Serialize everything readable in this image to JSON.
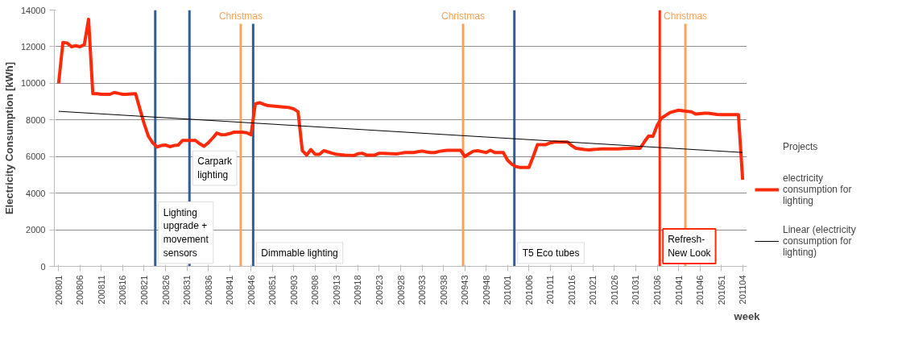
{
  "chart_data": {
    "type": "line",
    "xlabel": "week",
    "ylabel": "Electricity Consumption [kWh]",
    "legend_title": "Projects",
    "categories": [
      "200801",
      null,
      null,
      null,
      null,
      "200806",
      null,
      null,
      null,
      null,
      "200811",
      null,
      null,
      null,
      null,
      "200816",
      null,
      null,
      null,
      null,
      "200821",
      null,
      null,
      null,
      null,
      "200826",
      null,
      null,
      null,
      null,
      "200831",
      null,
      null,
      null,
      null,
      "200836",
      null,
      null,
      null,
      null,
      "200841",
      null,
      null,
      null,
      null,
      "200846",
      null,
      null,
      null,
      null,
      "200851",
      null,
      null,
      null,
      null,
      "200903",
      null,
      null,
      null,
      null,
      "200908",
      null,
      null,
      null,
      null,
      "200913",
      null,
      null,
      null,
      null,
      "200918",
      null,
      null,
      null,
      null,
      "200923",
      null,
      null,
      null,
      null,
      "200928",
      null,
      null,
      null,
      null,
      "200933",
      null,
      null,
      null,
      null,
      "200938",
      null,
      null,
      null,
      null,
      "200943",
      null,
      null,
      null,
      null,
      "200948",
      null,
      null,
      null,
      null,
      "201001",
      null,
      null,
      null,
      null,
      "201006",
      null,
      null,
      null,
      null,
      "201011",
      null,
      null,
      null,
      null,
      "201016",
      null,
      null,
      null,
      null,
      "201021",
      null,
      null,
      null,
      null,
      "201026",
      null,
      null,
      null,
      null,
      "201031",
      null,
      null,
      null,
      null,
      "201036",
      null,
      null,
      null,
      null,
      "201041",
      null,
      null,
      null,
      null,
      "201046",
      null,
      null,
      null,
      null,
      "201051",
      null,
      null,
      null,
      null,
      "201104"
    ],
    "ylim": [
      0,
      14000
    ],
    "yticks": [
      0,
      2000,
      4000,
      6000,
      8000,
      10000,
      12000,
      14000
    ],
    "grid": "y",
    "legend": "right",
    "marker": "none",
    "series": [
      {
        "name": "electricity consumption for lighting",
        "color": "#ff2a0a",
        "values": [
          10000,
          12230,
          12200,
          12000,
          12050,
          12000,
          12100,
          13500,
          9430,
          9430,
          9400,
          9400,
          9400,
          9500,
          9450,
          9400,
          9400,
          9420,
          9430,
          8600,
          7800,
          7100,
          6750,
          6520,
          6600,
          6630,
          6540,
          6600,
          6630,
          6880,
          6880,
          6880,
          6880,
          6700,
          6560,
          6750,
          7000,
          7280,
          7190,
          7200,
          7250,
          7330,
          7330,
          7330,
          7300,
          7190,
          8870,
          8940,
          8850,
          8780,
          8760,
          8740,
          8720,
          8700,
          8670,
          8600,
          8450,
          6320,
          6080,
          6380,
          6120,
          6120,
          6320,
          6250,
          6180,
          6120,
          6100,
          6080,
          6070,
          6050,
          6150,
          6180,
          6080,
          6080,
          6080,
          6180,
          6170,
          6160,
          6150,
          6140,
          6180,
          6220,
          6220,
          6220,
          6260,
          6300,
          6250,
          6220,
          6220,
          6280,
          6320,
          6340,
          6340,
          6340,
          6340,
          6000,
          6150,
          6290,
          6320,
          6270,
          6220,
          6340,
          6220,
          6220,
          6220,
          5800,
          5580,
          5450,
          5400,
          5400,
          5400,
          6000,
          6650,
          6650,
          6650,
          6750,
          6790,
          6790,
          6790,
          6790,
          6600,
          6450,
          6420,
          6380,
          6360,
          6380,
          6400,
          6420,
          6420,
          6420,
          6420,
          6420,
          6440,
          6440,
          6450,
          6450,
          6450,
          6800,
          7120,
          7100,
          7700,
          8100,
          8250,
          8400,
          8470,
          8530,
          8500,
          8470,
          8440,
          8320,
          8340,
          8360,
          8360,
          8330,
          8300,
          8290,
          8290,
          8290,
          8290,
          8290,
          4730
        ]
      },
      {
        "name": "Linear (electricity consumption for lighting)",
        "color": "#000000",
        "x": [
          "200801",
          "201104"
        ],
        "values": [
          8470,
          6220
        ]
      }
    ],
    "annotations": [
      "Lighting upgrade + movement sensors",
      "Carpark lighting",
      "Dimmable lighting",
      "T5 Eco tubes",
      "Refresh-New Look",
      "Christmas",
      "Christmas",
      "Christmas"
    ]
  }
}
